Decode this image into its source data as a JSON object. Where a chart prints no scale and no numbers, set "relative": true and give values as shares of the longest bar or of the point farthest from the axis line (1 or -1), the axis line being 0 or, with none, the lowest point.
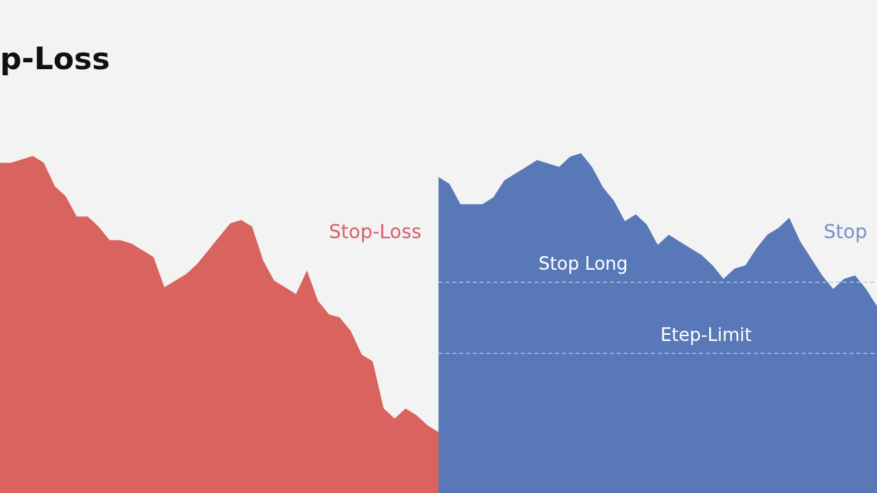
{
  "chart_data": [
    {
      "type": "area",
      "title": "p-Loss",
      "annotations": [
        "Stop-Loss"
      ],
      "relative": true,
      "legend": false,
      "tick_labels": false,
      "categories": [
        null,
        null,
        null,
        null,
        null,
        null,
        null,
        null,
        null,
        null,
        null,
        null,
        null,
        null,
        null,
        null,
        null,
        null,
        null,
        null,
        null,
        null,
        null,
        null,
        null,
        null,
        null,
        null,
        null,
        null,
        null,
        null,
        null,
        null,
        null,
        null,
        null,
        null,
        null,
        null,
        null
      ],
      "series": [
        {
          "color": "#d9635e",
          "values": [
            0.98,
            0.98,
            0.99,
            1,
            0.98,
            0.91,
            0.88,
            0.82,
            0.82,
            0.79,
            0.75,
            0.75,
            0.74,
            0.72,
            0.7,
            0.61,
            0.63,
            0.65,
            0.68,
            0.72,
            0.76,
            0.8,
            0.81,
            0.79,
            0.69,
            0.63,
            0.61,
            0.59,
            0.66,
            0.57,
            0.53,
            0.52,
            0.48,
            0.41,
            0.39,
            0.25,
            0.22,
            0.25,
            0.23,
            0.2,
            0.18
          ]
        }
      ]
    },
    {
      "type": "area",
      "annotations": [
        "Stop"
      ],
      "relative": true,
      "legend": false,
      "tick_labels": false,
      "categories": [
        null,
        null,
        null,
        null,
        null,
        null,
        null,
        null,
        null,
        null,
        null,
        null,
        null,
        null,
        null,
        null,
        null,
        null,
        null,
        null,
        null,
        null,
        null,
        null,
        null,
        null,
        null,
        null,
        null,
        null,
        null,
        null,
        null,
        null,
        null,
        null,
        null,
        null,
        null,
        null,
        null
      ],
      "series": [
        {
          "color": "#5878b8",
          "values": [
            0.93,
            0.91,
            0.85,
            0.85,
            0.85,
            0.87,
            0.92,
            0.94,
            0.96,
            0.98,
            0.97,
            0.96,
            0.99,
            1,
            0.96,
            0.9,
            0.86,
            0.8,
            0.82,
            0.79,
            0.73,
            0.76,
            0.74,
            0.72,
            0.7,
            0.67,
            0.63,
            0.66,
            0.67,
            0.72,
            0.76,
            0.78,
            0.81,
            0.74,
            0.69,
            0.64,
            0.6,
            0.63,
            0.64,
            0.6,
            0.55
          ]
        }
      ],
      "ref_lines": [
        {
          "axis": "y",
          "value": 0.62,
          "label": "Stop Long",
          "color": "#a9c6ee",
          "line_style": "dashed"
        },
        {
          "axis": "y",
          "value": 0.41,
          "label": "Etep-Limit",
          "color": "#a9c6ee",
          "line_style": "dashed"
        }
      ]
    }
  ]
}
